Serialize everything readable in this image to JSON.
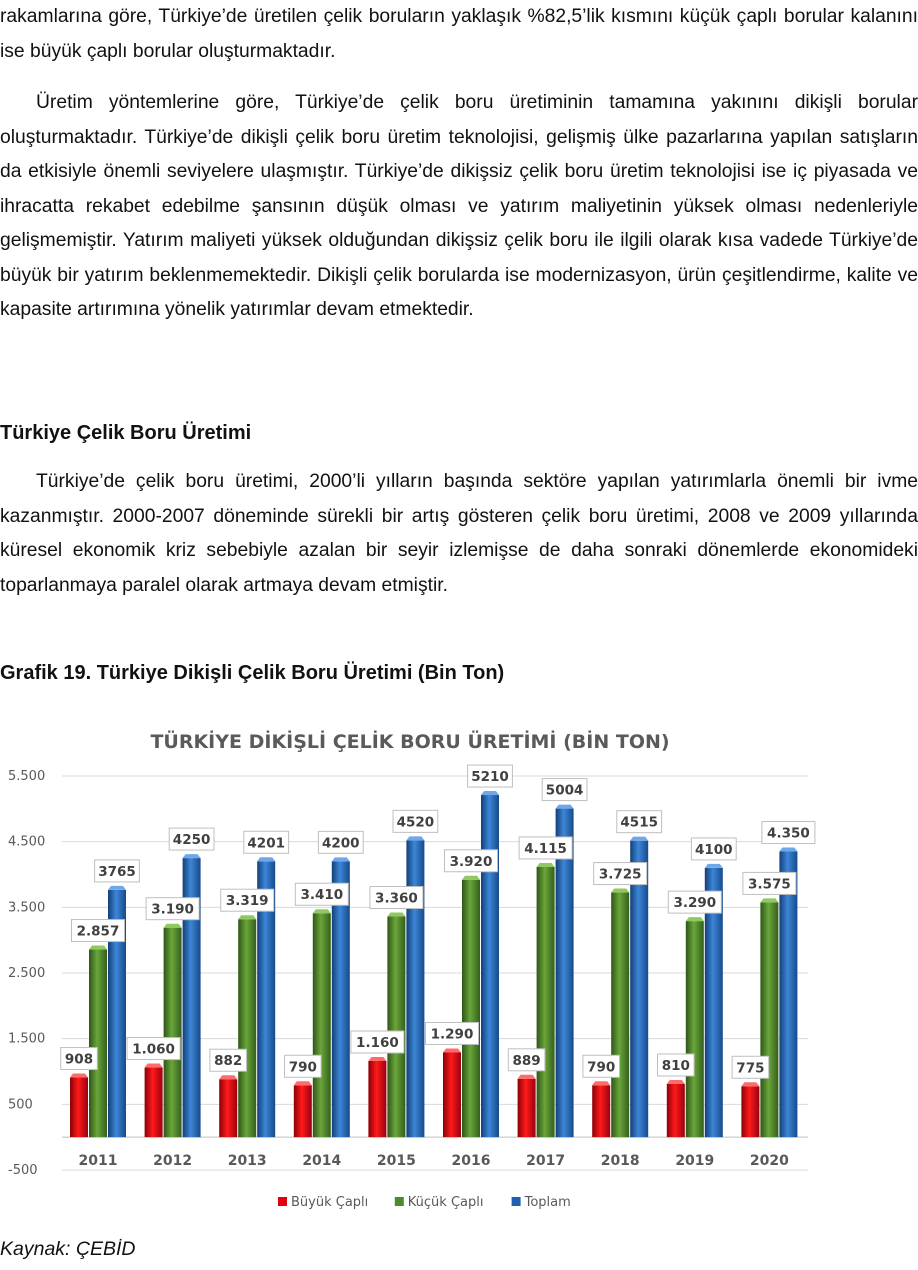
{
  "paragraph1": "rakamlarına göre, Türkiye’de üretilen çelik boruların yaklaşık %82,5’lik kısmını küçük çaplı borular kalanını ise büyük çaplı borular oluşturmaktadır.",
  "paragraph2": "Üretim yöntemlerine göre, Türkiye’de çelik boru üretiminin tamamına yakınını dikişli borular oluşturmaktadır. Türkiye’de dikişli çelik boru üretim teknolojisi, gelişmiş ülke pazarlarına yapılan satışların da etkisiyle önemli seviyelere ulaşmıştır. Türkiye’de dikişsiz çelik boru üretim teknolojisi ise iç piyasada ve ihracatta rekabet edebilme şansının düşük olması ve yatırım maliyetinin yüksek olması nedenleriyle gelişmemiştir. Yatırım maliyeti yüksek olduğundan dikişsiz çelik boru ile ilgili olarak kısa vadede Türkiye’de büyük bir yatırım beklenmemektedir. Dikişli çelik borularda ise modernizasyon, ürün çeşitlendirme, kalite ve kapasite artırımına yönelik yatırımlar devam etmektedir.",
  "section_heading": "Türkiye Çelik Boru Üretimi",
  "paragraph3": "Türkiye’de çelik boru üretimi, 2000’li yılların başında sektöre yapılan yatırımlarla önemli bir ivme kazanmıştır. 2000-2007 döneminde sürekli bir artış gösteren çelik boru üretimi, 2008 ve 2009 yıllarında küresel ekonomik kriz sebebiyle azalan bir seyir izlemişse de daha sonraki dönemlerde ekonomideki toparlanmaya paralel olarak artmaya devam etmiştir.",
  "figure_caption": "Grafik 19. Türkiye Dikişli Çelik Boru Üretimi (Bin Ton)",
  "source": "Kaynak: ÇEBİD",
  "chart_data": {
    "type": "bar",
    "title": "TÜRKİYE DİKİŞLİ ÇELİK BORU ÜRETİMİ (BİN TON)",
    "xlabel": "",
    "ylabel": "",
    "categories": [
      "2011",
      "2012",
      "2013",
      "2014",
      "2015",
      "2016",
      "2017",
      "2018",
      "2019",
      "2020"
    ],
    "ylim": [
      -500,
      5500
    ],
    "yticks": [
      -500,
      500,
      1500,
      2500,
      3500,
      4500,
      5500
    ],
    "ytick_labels": [
      "-500",
      "500",
      "1.500",
      "2.500",
      "3.500",
      "4.500",
      "5.500"
    ],
    "grid": true,
    "legend_position": "bottom",
    "series": [
      {
        "name": "Büyük Çaplı",
        "color": "#e3000f",
        "values": [
          908,
          1060,
          882,
          790,
          1160,
          1290,
          889,
          790,
          810,
          775
        ],
        "labels": [
          "908",
          "1.060",
          "882",
          "790",
          "1.160",
          "1.290",
          "889",
          "790",
          "810",
          "775"
        ]
      },
      {
        "name": "Küçük Çaplı",
        "color": "#4f8a2a",
        "values": [
          2857,
          3190,
          3319,
          3410,
          3360,
          3920,
          4115,
          3725,
          3290,
          3575
        ],
        "labels": [
          "2.857",
          "3.190",
          "3.319",
          "3.410",
          "3.360",
          "3.920",
          "4.115",
          "3.725",
          "3.290",
          "3.575"
        ]
      },
      {
        "name": "Toplam",
        "color": "#1f5fb0",
        "values": [
          3765,
          4250,
          4201,
          4200,
          4520,
          5210,
          5004,
          4515,
          4100,
          4350
        ],
        "labels": [
          "3765",
          "4250",
          "4201",
          "4200",
          "4520",
          "5210",
          "5004",
          "4515",
          "4100",
          "4.350"
        ]
      }
    ]
  }
}
